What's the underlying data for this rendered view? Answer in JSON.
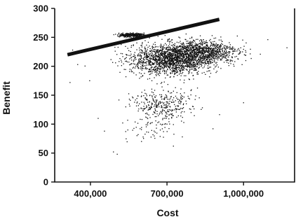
{
  "chart_data": {
    "type": "scatter",
    "xlabel": "Cost",
    "ylabel": "Benefit",
    "xlim": [
      260000,
      1200000
    ],
    "ylim": [
      0,
      300
    ],
    "x_ticks": [
      {
        "value": 400000,
        "label": "400,000"
      },
      {
        "value": 700000,
        "label": "700,000"
      },
      {
        "value": 1000000,
        "label": "1,000,000"
      }
    ],
    "y_ticks": [
      {
        "value": 0,
        "label": "0"
      },
      {
        "value": 50,
        "label": "50"
      },
      {
        "value": 100,
        "label": "100"
      },
      {
        "value": 150,
        "label": "150"
      },
      {
        "value": 200,
        "label": "200"
      },
      {
        "value": 250,
        "label": "250"
      },
      {
        "value": 300,
        "label": "300"
      }
    ],
    "grid": false,
    "series": [
      {
        "kind": "point-cloud",
        "clusters": [
          {
            "x_center": 720000,
            "y_center": 212,
            "x_spread": 150000,
            "y_spread": 24,
            "count": 1700
          },
          {
            "x_center": 840000,
            "y_center": 225,
            "x_spread": 130000,
            "y_spread": 18,
            "count": 900
          },
          {
            "x_center": 680000,
            "y_center": 135,
            "x_spread": 110000,
            "y_spread": 25,
            "count": 320
          },
          {
            "x_center": 640000,
            "y_center": 95,
            "x_spread": 90000,
            "y_spread": 25,
            "count": 70
          },
          {
            "x_center": 560000,
            "y_center": 254,
            "x_spread": 45000,
            "y_spread": 3,
            "count": 320
          }
        ],
        "outliers": [
          {
            "x": 320000,
            "y": 172
          },
          {
            "x": 330000,
            "y": 228
          },
          {
            "x": 350000,
            "y": 203
          },
          {
            "x": 490000,
            "y": 52
          },
          {
            "x": 505000,
            "y": 48
          },
          {
            "x": 725000,
            "y": 62
          },
          {
            "x": 760000,
            "y": 78
          },
          {
            "x": 880000,
            "y": 92
          },
          {
            "x": 1170000,
            "y": 232
          },
          {
            "x": 1095000,
            "y": 246
          },
          {
            "x": 1000000,
            "y": 137
          },
          {
            "x": 430000,
            "y": 110
          },
          {
            "x": 455000,
            "y": 88
          },
          {
            "x": 600000,
            "y": 70
          }
        ]
      },
      {
        "kind": "line",
        "x": [
          310000,
          905000
        ],
        "y": [
          220,
          281
        ]
      }
    ]
  }
}
